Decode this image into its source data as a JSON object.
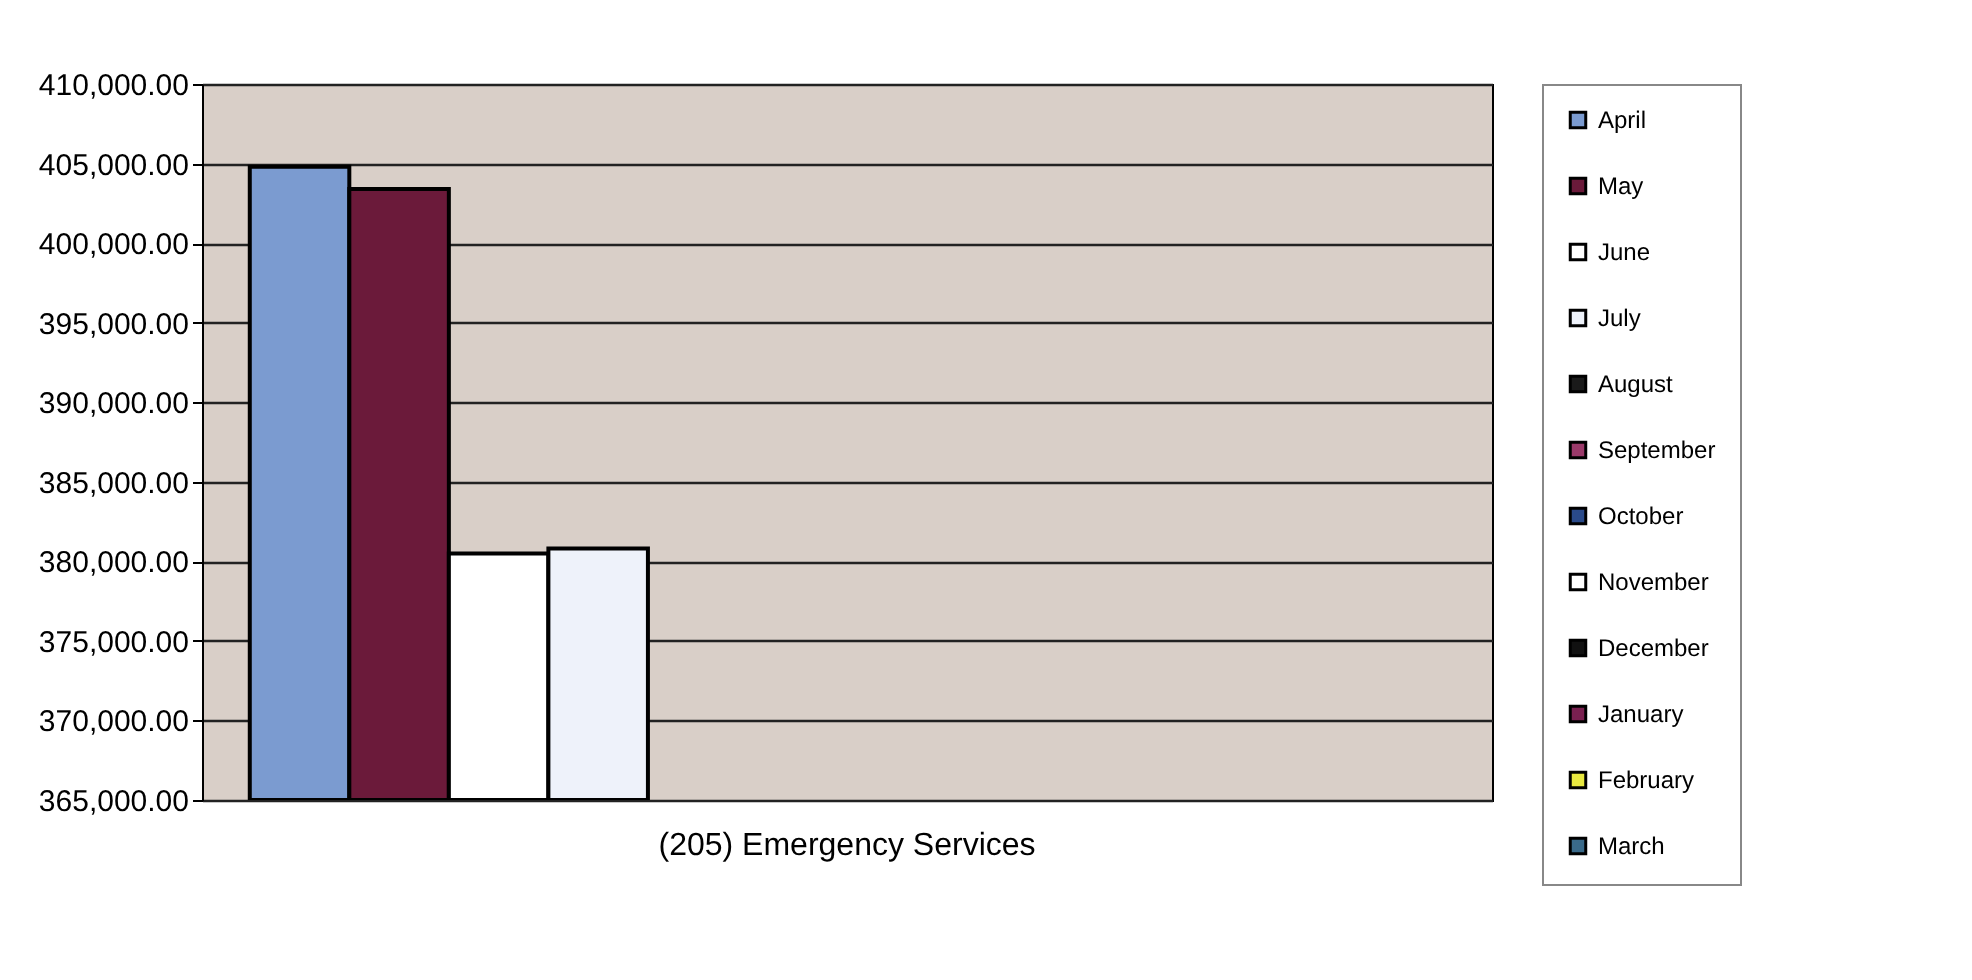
{
  "chart_data": {
    "type": "bar",
    "categories": [
      "(205) Emergency Services"
    ],
    "series": [
      {
        "name": "April",
        "color": "#7b9bd0",
        "values": [
          404800
        ]
      },
      {
        "name": "May",
        "color": "#6b1a3a",
        "values": [
          403400
        ]
      },
      {
        "name": "June",
        "color": "#ffffff",
        "values": [
          380500
        ]
      },
      {
        "name": "July",
        "color": "#eef2fa",
        "values": [
          380800
        ]
      },
      {
        "name": "August",
        "color": "#1a1a1a",
        "values": [
          null
        ]
      },
      {
        "name": "September",
        "color": "#9b3a6a",
        "values": [
          null
        ]
      },
      {
        "name": "October",
        "color": "#2a4a8a",
        "values": [
          null
        ]
      },
      {
        "name": "November",
        "color": "#ffffff",
        "values": [
          null
        ]
      },
      {
        "name": "December",
        "color": "#111111",
        "values": [
          null
        ]
      },
      {
        "name": "January",
        "color": "#7a2050",
        "values": [
          null
        ]
      },
      {
        "name": "February",
        "color": "#e8e840",
        "values": [
          null
        ]
      },
      {
        "name": "March",
        "color": "#3a6a8a",
        "values": [
          null
        ]
      }
    ],
    "ylim": [
      365000,
      410000
    ],
    "yticks": [
      {
        "value": 365000,
        "label": "365,000.00"
      },
      {
        "value": 370000,
        "label": "370,000.00"
      },
      {
        "value": 375000,
        "label": "375,000.00"
      },
      {
        "value": 380000,
        "label": "380,000.00"
      },
      {
        "value": 385000,
        "label": "385,000.00"
      },
      {
        "value": 390000,
        "label": "390,000.00"
      },
      {
        "value": 395000,
        "label": "395,000.00"
      },
      {
        "value": 400000,
        "label": "400,000.00"
      },
      {
        "value": 405000,
        "label": "405,000.00"
      },
      {
        "value": 410000,
        "label": "410,000.00"
      }
    ],
    "grid": "y",
    "legend": "right"
  }
}
